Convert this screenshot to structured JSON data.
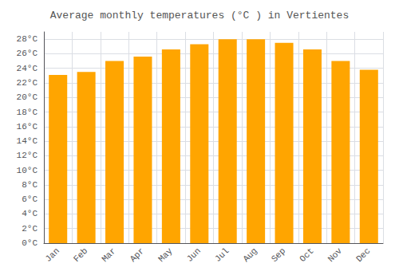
{
  "chart_data": {
    "type": "bar",
    "title": "Average monthly temperatures (°C ) in Vertientes",
    "categories": [
      "Jan",
      "Feb",
      "Mar",
      "Apr",
      "May",
      "Jun",
      "Jul",
      "Aug",
      "Sep",
      "Oct",
      "Nov",
      "Dec"
    ],
    "values": [
      23.1,
      23.5,
      25.0,
      25.6,
      26.6,
      27.3,
      28.0,
      28.0,
      27.5,
      26.6,
      25.0,
      23.8
    ],
    "color": "#FFA500",
    "ylim": [
      0,
      29
    ],
    "yticks": [
      {
        "value": 0,
        "label": "0°C"
      },
      {
        "value": 2,
        "label": "2°C"
      },
      {
        "value": 4,
        "label": "4°C"
      },
      {
        "value": 6,
        "label": "6°C"
      },
      {
        "value": 8,
        "label": "8°C"
      },
      {
        "value": 10,
        "label": "10°C"
      },
      {
        "value": 12,
        "label": "12°C"
      },
      {
        "value": 14,
        "label": "14°C"
      },
      {
        "value": 16,
        "label": "16°C"
      },
      {
        "value": 18,
        "label": "18°C"
      },
      {
        "value": 20,
        "label": "20°C"
      },
      {
        "value": 22,
        "label": "22°C"
      },
      {
        "value": 24,
        "label": "24°C"
      },
      {
        "value": 26,
        "label": "26°C"
      },
      {
        "value": 28,
        "label": "28°C"
      }
    ],
    "grid": true
  }
}
